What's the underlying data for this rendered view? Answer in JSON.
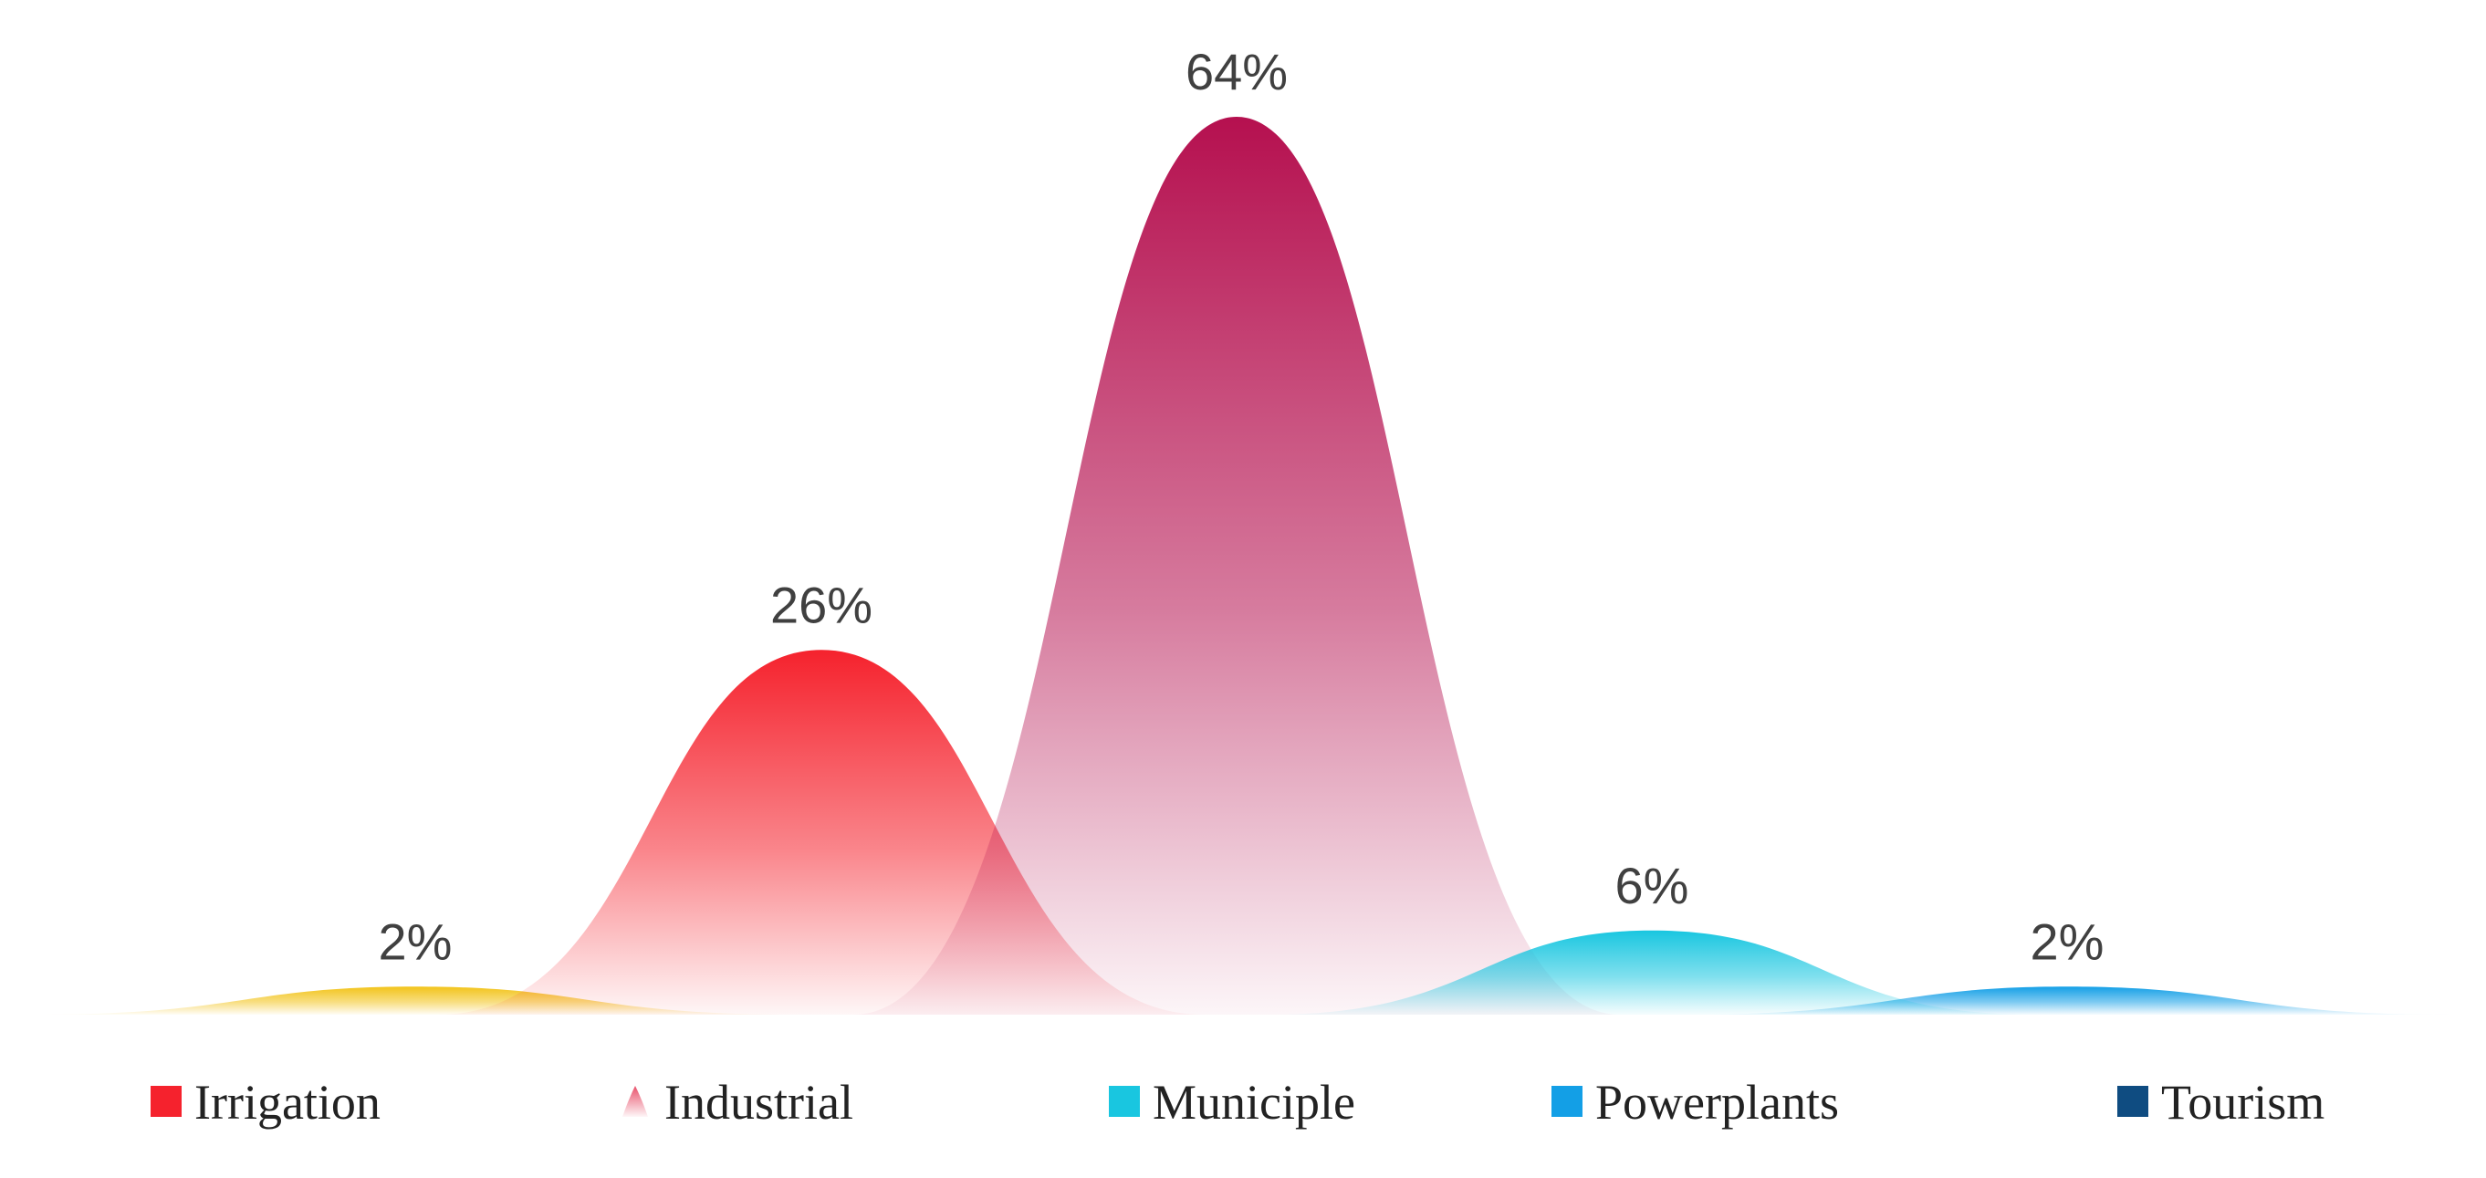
{
  "chart_data": {
    "type": "area",
    "categories": [
      "Irrigation",
      "Industrial",
      "Municiple",
      "Powerplants",
      "Tourism"
    ],
    "values": [
      26,
      64,
      6,
      2,
      2
    ],
    "data_labels": [
      "26%",
      "64%",
      "6%",
      "2%",
      "2%"
    ],
    "unit": "%",
    "series": [
      {
        "name": "Irrigation",
        "value": 26,
        "label": "26%",
        "color": "#f5222d"
      },
      {
        "name": "Industrial",
        "value": 64,
        "label": "64%",
        "color": "#b5104f"
      },
      {
        "name": "Municiple",
        "value": 6,
        "label": "6%",
        "color": "#19c6e0"
      },
      {
        "name": "Powerplants",
        "value": 2,
        "label": "2%",
        "color": "#139fe6"
      },
      {
        "name": "Tourism",
        "value": 2,
        "label": "2%",
        "color": "#f2c319"
      }
    ],
    "legend": {
      "position": "bottom",
      "entries": [
        {
          "name": "Irrigation",
          "color": "#f5222d",
          "swatch": "square"
        },
        {
          "name": "Industrial",
          "color": "#e8506a",
          "swatch": "drop"
        },
        {
          "name": "Municiple",
          "color": "#19c6e0",
          "swatch": "square"
        },
        {
          "name": "Powerplants",
          "color": "#139fe6",
          "swatch": "square"
        },
        {
          "name": "Tourism",
          "color": "#0f4c81",
          "swatch": "square"
        }
      ]
    },
    "ylim": [
      0,
      64
    ],
    "grid": false,
    "title": "",
    "xlabel": "",
    "ylabel": ""
  }
}
